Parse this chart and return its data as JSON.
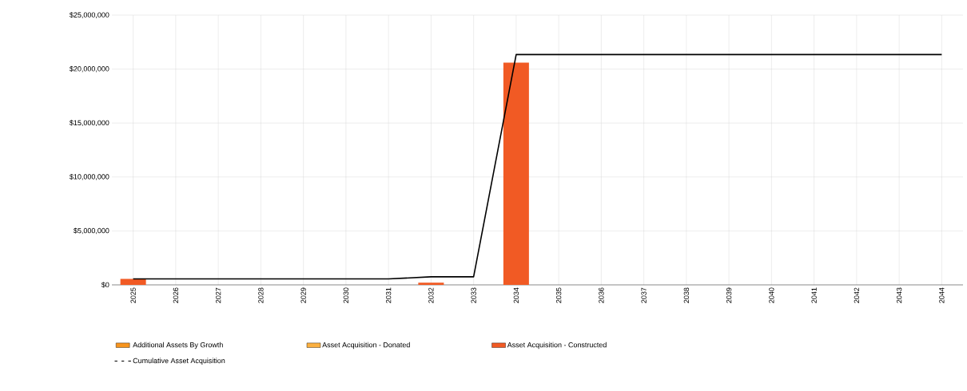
{
  "chart_data": {
    "type": "bar",
    "stacked": true,
    "categories": [
      "2025",
      "2026",
      "2027",
      "2028",
      "2029",
      "2030",
      "2031",
      "2032",
      "2033",
      "2034",
      "2035",
      "2036",
      "2037",
      "2038",
      "2039",
      "2040",
      "2041",
      "2042",
      "2043",
      "2044"
    ],
    "series": [
      {
        "name": "Additional Assets By Growth",
        "color": "#f7941d",
        "values": [
          0,
          0,
          0,
          0,
          0,
          0,
          0,
          0,
          0,
          0,
          0,
          0,
          0,
          0,
          0,
          0,
          0,
          0,
          0,
          0
        ]
      },
      {
        "name": "Asset Acquisition - Donated",
        "color": "#fbb040",
        "values": [
          0,
          0,
          0,
          0,
          0,
          0,
          0,
          0,
          0,
          0,
          0,
          0,
          0,
          0,
          0,
          0,
          0,
          0,
          0,
          0
        ]
      },
      {
        "name": "Asset Acquisition - Constructed",
        "color": "#f15a24",
        "values": [
          550000,
          0,
          0,
          0,
          0,
          0,
          0,
          200000,
          0,
          20600000,
          0,
          0,
          0,
          0,
          0,
          0,
          0,
          0,
          0,
          0
        ]
      },
      {
        "name": "Cumulative Asset Acquisition",
        "type": "line",
        "color": "#000000",
        "values": [
          550000,
          550000,
          550000,
          550000,
          550000,
          550000,
          550000,
          750000,
          750000,
          21350000,
          21350000,
          21350000,
          21350000,
          21350000,
          21350000,
          21350000,
          21350000,
          21350000,
          21350000,
          21350000
        ]
      }
    ],
    "ylim": [
      0,
      25000000
    ],
    "yticks": [
      {
        "value": 0,
        "label": "$0"
      },
      {
        "value": 5000000,
        "label": "$5,000,000"
      },
      {
        "value": 10000000,
        "label": "$10,000,000"
      },
      {
        "value": 15000000,
        "label": "$15,000,000"
      },
      {
        "value": 20000000,
        "label": "$20,000,000"
      },
      {
        "value": 25000000,
        "label": "$25,000,000"
      }
    ],
    "grid": true,
    "legend": "bottom",
    "marker": "none",
    "line_style": "solid"
  }
}
